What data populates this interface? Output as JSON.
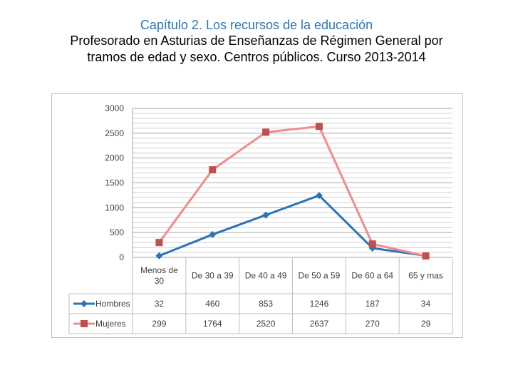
{
  "header": {
    "chapter": "Capítulo 2. Los recursos de la educación",
    "title_line1": "Profesorado en Asturias de Enseñanzas de Régimen General por",
    "title_line2": "tramos de edad y sexo. Centros públicos. Curso 2013-2014"
  },
  "chart_data": {
    "type": "line",
    "title": "",
    "xlabel": "",
    "ylabel": "",
    "ylim": [
      0,
      3000
    ],
    "yticks": [
      0,
      500,
      1000,
      1500,
      2000,
      2500,
      3000
    ],
    "grid": true,
    "legend": "data-table",
    "categories": [
      [
        "Menos de",
        "30"
      ],
      [
        "De 30 a 39"
      ],
      [
        "De 40 a 49"
      ],
      [
        "De 50 a 59"
      ],
      [
        "De 60 a 64"
      ],
      [
        "65 y mas"
      ]
    ],
    "series": [
      {
        "name": "Hombres",
        "values": [
          32,
          460,
          853,
          1246,
          187,
          34
        ],
        "color": "#2e74b5",
        "marker": "diamond"
      },
      {
        "name": "Mujeres",
        "values": [
          299,
          1764,
          2520,
          2637,
          270,
          29
        ],
        "color": "#f08c8c",
        "marker_color": "#c0504d",
        "marker": "square"
      }
    ]
  }
}
